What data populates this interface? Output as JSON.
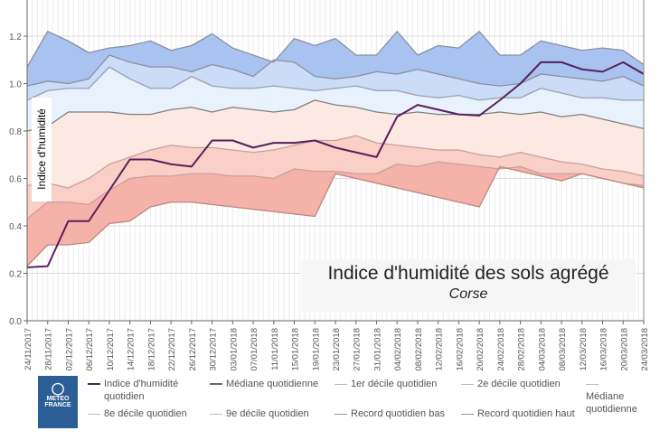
{
  "chart_data": {
    "type": "area",
    "title": "Indice d'humidité des sols agrégé",
    "subtitle": "Corse",
    "ylabel": "Indice d'humidité",
    "xlabel": "",
    "ylim": [
      0,
      1.3
    ],
    "yticks": [
      "0.0",
      "0.2",
      "0.4",
      "0.6",
      "0.8",
      "1.0",
      "1.2"
    ],
    "grid": true,
    "legend_position": "bottom",
    "categories": [
      "24/11/2017",
      "28/11/2017",
      "02/12/2017",
      "06/12/2017",
      "10/12/2017",
      "14/12/2017",
      "18/12/2017",
      "22/12/2017",
      "26/12/2017",
      "30/12/2017",
      "03/01/2018",
      "07/01/2018",
      "11/01/2018",
      "15/01/2018",
      "19/01/2018",
      "23/01/2018",
      "27/01/2018",
      "31/01/2018",
      "04/02/2018",
      "08/02/2018",
      "12/02/2018",
      "16/02/2018",
      "20/02/2018",
      "24/02/2018",
      "28/02/2018",
      "04/03/2018",
      "08/03/2018",
      "12/03/2018",
      "16/03/2018",
      "20/03/2018",
      "24/03/2018"
    ],
    "series": [
      {
        "name": "Record quotidien haut",
        "color": "#8a8fa0",
        "values": [
          1.07,
          1.22,
          1.18,
          1.13,
          1.15,
          1.16,
          1.18,
          1.14,
          1.16,
          1.21,
          1.15,
          1.12,
          1.09,
          1.19,
          1.16,
          1.19,
          1.12,
          1.12,
          1.22,
          1.12,
          1.16,
          1.15,
          1.22,
          1.12,
          1.12,
          1.18,
          1.16,
          1.14,
          1.15,
          1.14,
          1.08
        ]
      },
      {
        "name": "9e décile quotidien",
        "color": "#8a8fa0",
        "values": [
          0.99,
          1.01,
          1.0,
          1.02,
          1.12,
          1.09,
          1.07,
          1.07,
          1.05,
          1.08,
          1.06,
          1.03,
          1.1,
          1.09,
          1.03,
          1.02,
          1.03,
          1.05,
          1.04,
          1.06,
          1.04,
          1.02,
          1.0,
          0.99,
          1.0,
          1.04,
          1.03,
          1.02,
          1.01,
          1.03,
          0.99
        ]
      },
      {
        "name": "8e décile quotidien",
        "color": "#9aa0b0",
        "values": [
          0.93,
          0.97,
          0.98,
          0.98,
          1.07,
          1.02,
          0.98,
          0.98,
          1.03,
          0.99,
          0.98,
          0.98,
          0.99,
          0.98,
          0.97,
          0.98,
          0.99,
          0.97,
          0.97,
          0.95,
          0.94,
          0.95,
          0.93,
          0.94,
          0.94,
          0.98,
          0.96,
          0.94,
          0.94,
          0.93,
          0.93
        ]
      },
      {
        "name": "Médiane quotidienne",
        "color": "#808080",
        "values": [
          0.8,
          0.82,
          0.88,
          0.88,
          0.88,
          0.87,
          0.87,
          0.89,
          0.9,
          0.88,
          0.9,
          0.89,
          0.88,
          0.89,
          0.93,
          0.91,
          0.9,
          0.88,
          0.87,
          0.88,
          0.87,
          0.87,
          0.87,
          0.88,
          0.87,
          0.88,
          0.86,
          0.87,
          0.85,
          0.83,
          0.81
        ]
      },
      {
        "name": "2e décile quotidien",
        "color": "#c9a09a",
        "values": [
          0.57,
          0.58,
          0.56,
          0.6,
          0.66,
          0.69,
          0.72,
          0.74,
          0.73,
          0.73,
          0.72,
          0.71,
          0.72,
          0.74,
          0.76,
          0.76,
          0.78,
          0.75,
          0.74,
          0.73,
          0.72,
          0.72,
          0.7,
          0.69,
          0.71,
          0.69,
          0.67,
          0.66,
          0.64,
          0.63,
          0.61
        ]
      },
      {
        "name": "1er décile quotidien",
        "color": "#c9a09a",
        "values": [
          0.43,
          0.5,
          0.5,
          0.49,
          0.55,
          0.6,
          0.61,
          0.61,
          0.62,
          0.62,
          0.61,
          0.61,
          0.6,
          0.64,
          0.63,
          0.63,
          0.62,
          0.62,
          0.66,
          0.65,
          0.67,
          0.66,
          0.65,
          0.64,
          0.65,
          0.62,
          0.62,
          0.62,
          0.6,
          0.58,
          0.57
        ]
      },
      {
        "name": "Record quotidien bas",
        "color": "#b88880",
        "values": [
          0.23,
          0.32,
          0.32,
          0.33,
          0.41,
          0.42,
          0.48,
          0.5,
          0.5,
          0.49,
          0.48,
          0.47,
          0.46,
          0.45,
          0.44,
          0.62,
          0.6,
          0.58,
          0.56,
          0.54,
          0.52,
          0.5,
          0.48,
          0.65,
          0.63,
          0.61,
          0.59,
          0.62,
          0.6,
          0.58,
          0.56
        ]
      },
      {
        "name": "Indice d'humidité quotidien",
        "color": "#5a1f5e",
        "values": [
          0.225,
          0.23,
          0.42,
          0.42,
          0.55,
          0.68,
          0.68,
          0.66,
          0.65,
          0.76,
          0.76,
          0.73,
          0.75,
          0.75,
          0.76,
          0.73,
          0.71,
          0.69,
          0.86,
          0.91,
          0.89,
          0.87,
          0.865,
          0.93,
          1.0,
          1.09,
          1.09,
          1.06,
          1.05,
          1.09,
          1.04
        ]
      }
    ],
    "band_colors": [
      "#a9c3f0",
      "#cadcf8",
      "#e8f1fc",
      "#fde9e4",
      "#f9cfc6",
      "#f5b2a8"
    ]
  },
  "legend": [
    {
      "label": "Indice d'humidité quotidien",
      "color": "#5a1f5e"
    },
    {
      "label": "Médiane quotidienne",
      "color": "#666666"
    },
    {
      "label": "1er décile quotidien",
      "color": "#bbbbbb"
    },
    {
      "label": "2e décile quotidien",
      "color": "#bbbbbb"
    },
    {
      "label": "Médiane quotidienne",
      "color": "#bbbbbb"
    },
    {
      "label": "8e décile quotidien",
      "color": "#bbbbbb"
    },
    {
      "label": "9e décile quotidien",
      "color": "#bbbbbb"
    },
    {
      "label": "Record quotidien bas",
      "color": "#999999"
    },
    {
      "label": "Record quotidien haut",
      "color": "#999999"
    }
  ],
  "logo": {
    "text_line1": "METEO",
    "text_line2": "FRANCE",
    "color": "#2b5d96"
  }
}
